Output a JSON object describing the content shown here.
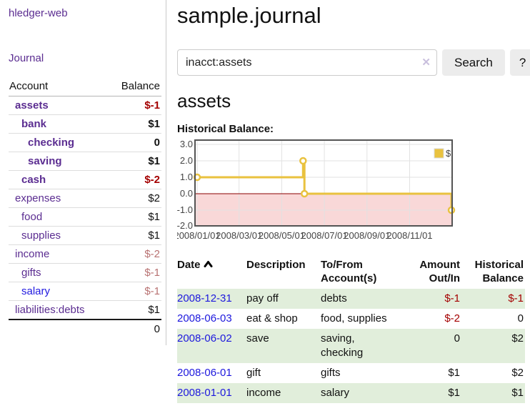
{
  "sidebar": {
    "brand": "hledger-web",
    "journal_link": "Journal",
    "accounts": {
      "headers": {
        "account": "Account",
        "balance": "Balance"
      },
      "rows": [
        {
          "name": "assets",
          "balance": "$-1"
        },
        {
          "name": "bank",
          "balance": "$1"
        },
        {
          "name": "checking",
          "balance": "0"
        },
        {
          "name": "saving",
          "balance": "$1"
        },
        {
          "name": "cash",
          "balance": "$-2"
        },
        {
          "name": "expenses",
          "balance": "$2"
        },
        {
          "name": "food",
          "balance": "$1"
        },
        {
          "name": "supplies",
          "balance": "$1"
        },
        {
          "name": "income",
          "balance": "$-2"
        },
        {
          "name": "gifts",
          "balance": "$-1"
        },
        {
          "name": "salary",
          "balance": "$-1"
        },
        {
          "name": "liabilities:debts",
          "balance": "$1"
        }
      ],
      "total": "0"
    }
  },
  "main": {
    "title": "sample.journal",
    "search": {
      "value": "inacct:assets",
      "clear_icon": "✕",
      "button_label": "Search",
      "help_label": "?"
    },
    "account_heading": "assets",
    "chart_heading": "Historical Balance:"
  },
  "chart_data": {
    "type": "line",
    "step": true,
    "title": "Historical Balance",
    "series": [
      {
        "name": "$",
        "color": "#e9c23f",
        "points": [
          {
            "date": "2008-01-01",
            "day": 0,
            "value": 1
          },
          {
            "date": "2008-06-01",
            "day": 152,
            "value": 2
          },
          {
            "date": "2008-06-03",
            "day": 154,
            "value": 0
          },
          {
            "date": "2008-12-31",
            "day": 365,
            "value": -1
          }
        ]
      }
    ],
    "x_tick_labels": [
      "2008/01/01",
      "2008/03/01",
      "2008/05/01",
      "2008/07/01",
      "2008/09/01",
      "2008/11/01"
    ],
    "y_tick_labels": [
      "3.0",
      "2.0",
      "1.0",
      "0.0",
      "-1.0",
      "-2.0"
    ],
    "ylim": [
      -2.0,
      3.25
    ],
    "x_range_days": [
      0,
      365
    ],
    "grid": true,
    "negative_region_shaded": true,
    "legend_position": "top-right"
  },
  "register": {
    "headers": {
      "date": "Date",
      "description": "Description",
      "accounts": "To/From Account(s)",
      "amount": "Amount Out/In",
      "balance": "Historical Balance"
    },
    "rows": [
      {
        "date": "2008-12-31",
        "description": "pay off",
        "accounts": "debts",
        "amount": "$-1",
        "balance": "$-1"
      },
      {
        "date": "2008-06-03",
        "description": "eat & shop",
        "accounts": "food, supplies",
        "amount": "$-2",
        "balance": "0"
      },
      {
        "date": "2008-06-02",
        "description": "save",
        "accounts": "saving, checking",
        "amount": "0",
        "balance": "$2"
      },
      {
        "date": "2008-06-01",
        "description": "gift",
        "accounts": "gifts",
        "amount": "$1",
        "balance": "$2"
      },
      {
        "date": "2008-01-01",
        "description": "income",
        "accounts": "salary",
        "amount": "$1",
        "balance": "$1"
      }
    ]
  },
  "colors": {
    "accent_purple": "#5b2d91",
    "link_blue": "#1d18dd",
    "negative_strong": "#a40000",
    "negative_soft": "#b87272",
    "row_stripe_green": "#e1eedb",
    "chart_line_gold": "#e9c23f",
    "negative_region_pink": "#f9d8d8",
    "zero_line_red": "#8b0000",
    "button_gray": "#ececec"
  }
}
